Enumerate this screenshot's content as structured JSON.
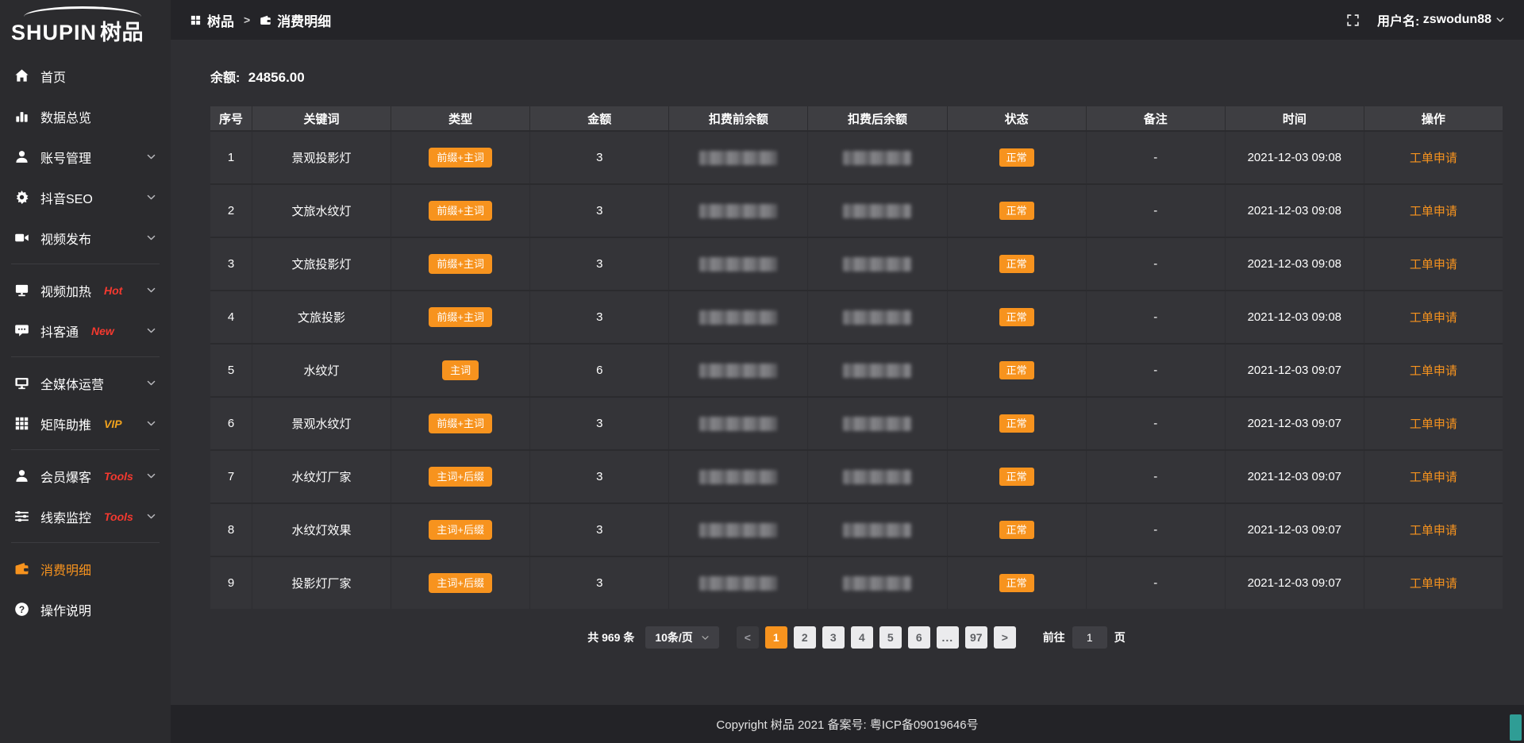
{
  "colors": {
    "accent": "#f7931e",
    "tag_red": "#f5392f",
    "tag_vip": "#f0a21d",
    "widget_teal": "#2f9d95"
  },
  "sidebar": {
    "logo": {
      "en": "SHUPIN",
      "cn": "树品"
    },
    "items": [
      {
        "key": "home",
        "icon": "home",
        "label": "首页"
      },
      {
        "key": "data-overview",
        "icon": "bar-chart",
        "label": "数据总览"
      },
      {
        "key": "account-management",
        "icon": "user",
        "label": "账号管理",
        "chevron": true
      },
      {
        "key": "douyin-seo",
        "icon": "gear",
        "label": "抖音SEO",
        "chevron": true
      },
      {
        "key": "video-publish",
        "icon": "video-camera",
        "label": "视频发布",
        "chevron": true
      },
      {
        "divider": true
      },
      {
        "key": "video-heating",
        "icon": "screen",
        "label": "视频加热",
        "tag": "Hot",
        "tag_color": "red",
        "chevron": true
      },
      {
        "key": "doukoutong",
        "icon": "chat",
        "label": "抖客通",
        "tag": "New",
        "tag_color": "red",
        "chevron": true
      },
      {
        "divider": true
      },
      {
        "key": "all-media-operation",
        "icon": "monitor",
        "label": "全媒体运营",
        "chevron": true
      },
      {
        "key": "matrix-boost",
        "icon": "grid",
        "label": "矩阵助推",
        "tag": "VIP",
        "tag_color": "vip",
        "chevron": true
      },
      {
        "divider": true
      },
      {
        "key": "member-baoke",
        "icon": "user",
        "label": "会员爆客",
        "tag": "Tools",
        "tag_color": "red",
        "chevron": true
      },
      {
        "key": "lead-monitoring",
        "icon": "sliders",
        "label": "线索监控",
        "tag": "Tools",
        "tag_color": "red",
        "chevron": true
      },
      {
        "divider": true
      },
      {
        "key": "consumption-detail",
        "icon": "wallet",
        "label": "消费明细",
        "active": true
      },
      {
        "key": "operation-guide",
        "icon": "question",
        "label": "操作说明"
      }
    ]
  },
  "topbar": {
    "breadcrumb": [
      {
        "icon": "grid-small",
        "label": "树品"
      },
      {
        "icon": "wallet",
        "label": "消费明细"
      }
    ],
    "separator": ">",
    "username_label": "用户名:",
    "username": "zswodun88"
  },
  "main": {
    "balance_label": "余额:",
    "balance_value": "24856.00",
    "table": {
      "headers": [
        "序号",
        "关键词",
        "类型",
        "金额",
        "扣费前余额",
        "扣费后余额",
        "状态",
        "备注",
        "时间",
        "操作"
      ],
      "rows": [
        {
          "seq": "1",
          "keyword": "景观投影灯",
          "type": "前缀+主词",
          "amount": "3",
          "status": "正常",
          "remark": "-",
          "time": "2021-12-03 09:08",
          "action": "工单申请"
        },
        {
          "seq": "2",
          "keyword": "文旅水纹灯",
          "type": "前缀+主词",
          "amount": "3",
          "status": "正常",
          "remark": "-",
          "time": "2021-12-03 09:08",
          "action": "工单申请"
        },
        {
          "seq": "3",
          "keyword": "文旅投影灯",
          "type": "前缀+主词",
          "amount": "3",
          "status": "正常",
          "remark": "-",
          "time": "2021-12-03 09:08",
          "action": "工单申请"
        },
        {
          "seq": "4",
          "keyword": "文旅投影",
          "type": "前缀+主词",
          "amount": "3",
          "status": "正常",
          "remark": "-",
          "time": "2021-12-03 09:08",
          "action": "工单申请"
        },
        {
          "seq": "5",
          "keyword": "水纹灯",
          "type": "主词",
          "amount": "6",
          "status": "正常",
          "remark": "-",
          "time": "2021-12-03 09:07",
          "action": "工单申请"
        },
        {
          "seq": "6",
          "keyword": "景观水纹灯",
          "type": "前缀+主词",
          "amount": "3",
          "status": "正常",
          "remark": "-",
          "time": "2021-12-03 09:07",
          "action": "工单申请"
        },
        {
          "seq": "7",
          "keyword": "水纹灯厂家",
          "type": "主词+后缀",
          "amount": "3",
          "status": "正常",
          "remark": "-",
          "time": "2021-12-03 09:07",
          "action": "工单申请"
        },
        {
          "seq": "8",
          "keyword": "水纹灯效果",
          "type": "主词+后缀",
          "amount": "3",
          "status": "正常",
          "remark": "-",
          "time": "2021-12-03 09:07",
          "action": "工单申请"
        },
        {
          "seq": "9",
          "keyword": "投影灯厂家",
          "type": "主词+后缀",
          "amount": "3",
          "status": "正常",
          "remark": "-",
          "time": "2021-12-03 09:07",
          "action": "工单申请"
        }
      ]
    },
    "pagination": {
      "total_label": "共 969 条",
      "page_size": "10条/页",
      "prev": "<",
      "next": ">",
      "pages": [
        "1",
        "2",
        "3",
        "4",
        "5",
        "6",
        "...",
        "97"
      ],
      "active_page": "1",
      "goto_label": "前往",
      "goto_value": "1",
      "goto_suffix": "页"
    }
  },
  "footer": {
    "copyright": "Copyright 树品 2021 备案号: 粤ICP备09019646号"
  }
}
